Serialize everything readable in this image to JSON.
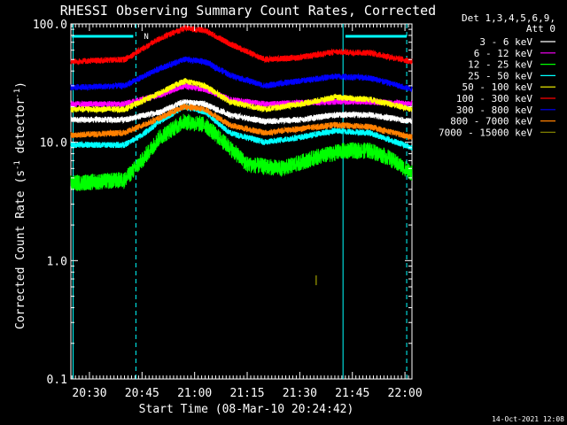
{
  "chart_data": {
    "type": "line",
    "title": "RHESSI Observing Summary Count Rates, Corrected",
    "ylabel_prefix": "Corrected Count Rate (s",
    "ylabel_sup": "-1",
    "ylabel_mid": " detector",
    "ylabel_sup2": "-1",
    "ylabel_suffix": ")",
    "xlabel": "Start Time (08-Mar-10 20:24:42)",
    "y_scale": "log",
    "ylim": [
      0.1,
      100.0
    ],
    "xlim": [
      "20:24:42",
      "22:02:00"
    ],
    "y_ticks": [
      "0.1",
      "1.0",
      "10.0",
      "100.0"
    ],
    "x_ticks": [
      "20:30",
      "20:45",
      "21:00",
      "21:15",
      "21:30",
      "21:45",
      "22:00"
    ],
    "legend_header": [
      "Det 1,3,4,5,6,9,",
      "Att 0"
    ],
    "legend_position": "right",
    "timestamp": "14-Oct-2021 12:08",
    "night_marker_label": "N",
    "vertical_markers": [
      "20:25:20",
      "20:43:15",
      "21:42:20",
      "22:00:30"
    ],
    "night_intervals": [
      [
        "20:25:00",
        "20:42:30"
      ],
      [
        "21:43:00",
        "22:00:30"
      ]
    ],
    "series": [
      {
        "name": "3 - 6 keV",
        "color": "#ffffff",
        "points": [
          [
            "20:24:42",
            15.5
          ],
          [
            "20:40:00",
            15.5
          ],
          [
            "20:50:00",
            18.0
          ],
          [
            "20:57:00",
            22.0
          ],
          [
            "21:03:00",
            21.0
          ],
          [
            "21:10:00",
            17.0
          ],
          [
            "21:20:00",
            15.0
          ],
          [
            "21:30:00",
            15.5
          ],
          [
            "21:40:00",
            17.0
          ],
          [
            "21:50:00",
            17.0
          ],
          [
            "22:02:00",
            15.0
          ]
        ]
      },
      {
        "name": "6 - 12 keV",
        "color": "#ff00ff",
        "points": [
          [
            "20:24:42",
            21.0
          ],
          [
            "20:40:00",
            21.0
          ],
          [
            "20:50:00",
            25.0
          ],
          [
            "20:57:00",
            30.0
          ],
          [
            "21:03:00",
            28.0
          ],
          [
            "21:10:00",
            23.0
          ],
          [
            "21:20:00",
            21.0
          ],
          [
            "21:30:00",
            21.5
          ],
          [
            "21:40:00",
            22.0
          ],
          [
            "21:50:00",
            22.0
          ],
          [
            "22:02:00",
            21.0
          ]
        ]
      },
      {
        "name": "12 - 25 keV",
        "color": "#00ff00",
        "points": [
          [
            "20:24:42",
            4.5
          ],
          [
            "20:40:00",
            4.8
          ],
          [
            "20:45:00",
            7.0
          ],
          [
            "20:50:00",
            11.0
          ],
          [
            "20:57:00",
            15.0
          ],
          [
            "21:03:00",
            14.0
          ],
          [
            "21:10:00",
            9.0
          ],
          [
            "21:15:00",
            6.5
          ],
          [
            "21:25:00",
            6.0
          ],
          [
            "21:35:00",
            7.5
          ],
          [
            "21:43:00",
            8.5
          ],
          [
            "21:50:00",
            8.5
          ],
          [
            "21:55:00",
            7.5
          ],
          [
            "22:02:00",
            5.5
          ]
        ]
      },
      {
        "name": "25 - 50 keV",
        "color": "#00ffff",
        "points": [
          [
            "20:24:42",
            9.5
          ],
          [
            "20:40:00",
            9.5
          ],
          [
            "20:45:00",
            11.5
          ],
          [
            "20:50:00",
            15.0
          ],
          [
            "20:57:00",
            20.0
          ],
          [
            "21:03:00",
            18.0
          ],
          [
            "21:10:00",
            12.0
          ],
          [
            "21:20:00",
            10.0
          ],
          [
            "21:30:00",
            11.0
          ],
          [
            "21:40:00",
            12.5
          ],
          [
            "21:50:00",
            12.0
          ],
          [
            "22:02:00",
            9.0
          ]
        ]
      },
      {
        "name": "50 - 100 keV",
        "color": "#ffff00",
        "points": [
          [
            "20:24:42",
            19.0
          ],
          [
            "20:40:00",
            19.0
          ],
          [
            "20:50:00",
            26.0
          ],
          [
            "20:57:00",
            33.0
          ],
          [
            "21:03:00",
            30.0
          ],
          [
            "21:10:00",
            22.0
          ],
          [
            "21:20:00",
            19.0
          ],
          [
            "21:30:00",
            21.0
          ],
          [
            "21:40:00",
            24.0
          ],
          [
            "21:50:00",
            23.0
          ],
          [
            "22:02:00",
            19.0
          ]
        ]
      },
      {
        "name": "100 - 300 keV",
        "color": "#ff0000",
        "points": [
          [
            "20:24:42",
            48.0
          ],
          [
            "20:40:00",
            50.0
          ],
          [
            "20:50:00",
            75.0
          ],
          [
            "20:57:00",
            92.0
          ],
          [
            "21:03:00",
            88.0
          ],
          [
            "21:10:00",
            68.0
          ],
          [
            "21:20:00",
            50.0
          ],
          [
            "21:30:00",
            52.0
          ],
          [
            "21:40:00",
            58.0
          ],
          [
            "21:50:00",
            57.0
          ],
          [
            "22:02:00",
            48.0
          ]
        ]
      },
      {
        "name": "300 - 800 keV",
        "color": "#0000ff",
        "points": [
          [
            "20:24:42",
            29.0
          ],
          [
            "20:40:00",
            30.0
          ],
          [
            "20:50:00",
            42.0
          ],
          [
            "20:57:00",
            50.0
          ],
          [
            "21:03:00",
            48.0
          ],
          [
            "21:10:00",
            37.0
          ],
          [
            "21:20:00",
            30.0
          ],
          [
            "21:30:00",
            33.0
          ],
          [
            "21:40:00",
            36.0
          ],
          [
            "21:50:00",
            35.0
          ],
          [
            "22:02:00",
            28.0
          ]
        ]
      },
      {
        "name": "800 - 7000 keV",
        "color": "#ff8000",
        "points": [
          [
            "20:24:42",
            11.5
          ],
          [
            "20:40:00",
            12.0
          ],
          [
            "20:50:00",
            16.0
          ],
          [
            "20:57:00",
            20.0
          ],
          [
            "21:03:00",
            19.0
          ],
          [
            "21:10:00",
            14.0
          ],
          [
            "21:20:00",
            12.0
          ],
          [
            "21:30:00",
            13.0
          ],
          [
            "21:40:00",
            14.0
          ],
          [
            "21:50:00",
            13.5
          ],
          [
            "22:02:00",
            11.0
          ]
        ]
      },
      {
        "name": "7000 - 15000 keV",
        "color": "#808000",
        "points": [
          [
            "21:34:40",
            0.62
          ],
          [
            "21:34:40",
            0.75
          ]
        ]
      }
    ]
  }
}
